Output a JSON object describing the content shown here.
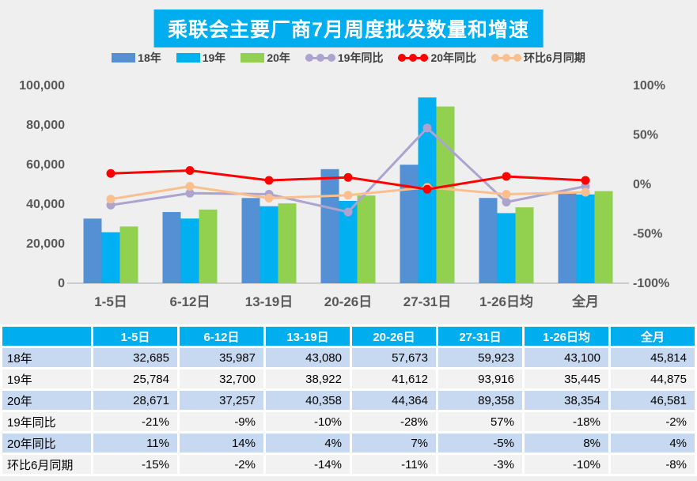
{
  "title": "乘联会主要厂商7月周度批发数量和增速",
  "colors": {
    "page_bg": "#EFEFEF",
    "title_bg": "#00AEEF",
    "bar_18": "#5590D5",
    "bar_19": "#00B0F0",
    "bar_20": "#92D050",
    "line_19yoy": "#ACA3CE",
    "line_20yoy": "#FF0000",
    "line_mom": "#FABF8F",
    "axis_text": "#595959",
    "axis_line": "#C0C0C0",
    "table_header_bg": "#00AEEF",
    "table_row_blue": "#C7D9F0",
    "table_row_gray": "#F2F2F2"
  },
  "legend": [
    {
      "label": "18年",
      "type": "bar",
      "color": "#5590D5"
    },
    {
      "label": "19年",
      "type": "bar",
      "color": "#00B0F0"
    },
    {
      "label": "20年",
      "type": "bar",
      "color": "#92D050"
    },
    {
      "label": "19年同比",
      "type": "line",
      "color": "#ACA3CE"
    },
    {
      "label": "20年同比",
      "type": "line",
      "color": "#FF0000"
    },
    {
      "label": "环比6月同期",
      "type": "line",
      "color": "#FABF8F"
    }
  ],
  "chart_data": {
    "type": "bar+line combo",
    "title": "乘联会主要厂商7月周度批发数量和增速",
    "categories": [
      "1-5日",
      "6-12日",
      "13-19日",
      "20-26日",
      "27-31日",
      "1-26日均",
      "全月"
    ],
    "bar_series": [
      {
        "name": "18年",
        "color": "#5590D5",
        "values": [
          32685,
          35987,
          43080,
          57673,
          59923,
          43100,
          45814
        ]
      },
      {
        "name": "19年",
        "color": "#00B0F0",
        "values": [
          25784,
          32700,
          38922,
          41612,
          93916,
          35445,
          44875
        ]
      },
      {
        "name": "20年",
        "color": "#92D050",
        "values": [
          28671,
          37257,
          40358,
          44364,
          89358,
          38354,
          46581
        ]
      }
    ],
    "line_series": [
      {
        "name": "19年同比",
        "color": "#ACA3CE",
        "values_pct": [
          -21,
          -9,
          -10,
          -28,
          57,
          -18,
          -2
        ]
      },
      {
        "name": "环比6月同期",
        "color": "#FABF8F",
        "values_pct": [
          -15,
          -2,
          -14,
          -11,
          -3,
          -10,
          -8
        ]
      },
      {
        "name": "20年同比",
        "color": "#FF0000",
        "values_pct": [
          11,
          14,
          4,
          7,
          -5,
          8,
          4
        ]
      }
    ],
    "left_axis": {
      "min": 0,
      "max": 100000,
      "ticks": [
        0,
        20000,
        40000,
        60000,
        80000,
        100000
      ],
      "tick_labels": [
        "0",
        "20,000",
        "40,000",
        "60,000",
        "80,000",
        "100,000"
      ]
    },
    "right_axis": {
      "min": -100,
      "max": 100,
      "ticks": [
        -100,
        -50,
        0,
        50,
        100
      ],
      "tick_labels": [
        "-100%",
        "-50%",
        "0%",
        "50%",
        "100%"
      ]
    },
    "grid": false,
    "legend_position": "top"
  },
  "table": {
    "corner_label": "",
    "columns": [
      "1-5日",
      "6-12日",
      "13-19日",
      "20-26日",
      "27-31日",
      "1-26日均",
      "全月"
    ],
    "rows": [
      {
        "label": "18年",
        "values": [
          "32,685",
          "35,987",
          "43,080",
          "57,673",
          "59,923",
          "43,100",
          "45,814"
        ],
        "shade": "blue"
      },
      {
        "label": "19年",
        "values": [
          "25,784",
          "32,700",
          "38,922",
          "41,612",
          "93,916",
          "35,445",
          "44,875"
        ],
        "shade": "gray"
      },
      {
        "label": "20年",
        "values": [
          "28,671",
          "37,257",
          "40,358",
          "44,364",
          "89,358",
          "38,354",
          "46,581"
        ],
        "shade": "blue"
      },
      {
        "label": "19年同比",
        "values": [
          "-21%",
          "-9%",
          "-10%",
          "-28%",
          "57%",
          "-18%",
          "-2%"
        ],
        "shade": "gray"
      },
      {
        "label": "20年同比",
        "values": [
          "11%",
          "14%",
          "4%",
          "7%",
          "-5%",
          "8%",
          "4%"
        ],
        "shade": "blue"
      },
      {
        "label": "环比6月同期",
        "values": [
          "-15%",
          "-2%",
          "-14%",
          "-11%",
          "-3%",
          "-10%",
          "-8%"
        ],
        "shade": "gray"
      }
    ]
  }
}
